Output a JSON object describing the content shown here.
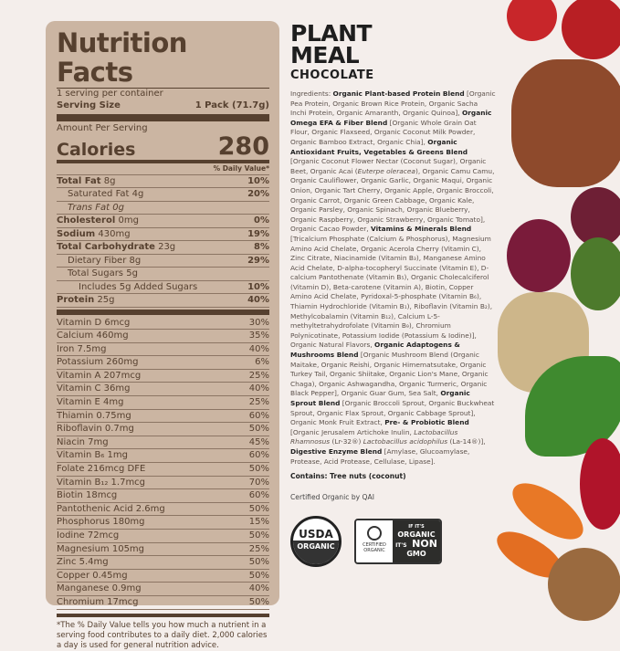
{
  "label": {
    "title": "Nutrition Facts",
    "servings": "1 serving per container",
    "serving_size_label": "Serving Size",
    "serving_size": "1 Pack  (71.7g)",
    "amount_per_serving": "Amount Per Serving",
    "calories_label": "Calories",
    "calories": "280",
    "dv_header": "% Daily Value*",
    "rows": [
      {
        "name": "Total Fat",
        "amt": "8g",
        "dv": "10%",
        "bold": true,
        "indent": 0
      },
      {
        "name": "Saturated Fat",
        "amt": "4g",
        "dv": "20%",
        "bold": false,
        "indent": 1
      },
      {
        "name": "Trans Fat",
        "amt": "0g",
        "dv": "",
        "bold": false,
        "indent": 1,
        "italic": true
      },
      {
        "name": "Cholesterol",
        "amt": "0mg",
        "dv": "0%",
        "bold": true,
        "indent": 0
      },
      {
        "name": "Sodium",
        "amt": "430mg",
        "dv": "19%",
        "bold": true,
        "indent": 0
      },
      {
        "name": "Total Carbohydrate",
        "amt": "23g",
        "dv": "8%",
        "bold": true,
        "indent": 0
      },
      {
        "name": "Dietary Fiber",
        "amt": "8g",
        "dv": "29%",
        "bold": false,
        "indent": 1
      },
      {
        "name": "Total Sugars",
        "amt": "5g",
        "dv": "",
        "bold": false,
        "indent": 1
      },
      {
        "name": "Includes 5g Added Sugars",
        "amt": "",
        "dv": "10%",
        "bold": false,
        "indent": 2
      },
      {
        "name": "Protein",
        "amt": "25g",
        "dv": "40%",
        "bold": true,
        "indent": 0
      }
    ],
    "vitamins": [
      [
        "Vitamin D 6mcg",
        "30%"
      ],
      [
        "Calcium 460mg",
        "35%"
      ],
      [
        "Iron 7.5mg",
        "40%"
      ],
      [
        "Potassium 260mg",
        "6%"
      ],
      [
        "Vitamin A 207mcg",
        "25%"
      ],
      [
        "Vitamin C 36mg",
        "40%"
      ],
      [
        "Vitamin E 4mg",
        "25%"
      ],
      [
        "Thiamin 0.75mg",
        "60%"
      ],
      [
        "Riboflavin 0.7mg",
        "50%"
      ],
      [
        "Niacin 7mg",
        "45%"
      ],
      [
        "Vitamin B₆ 1mg",
        "60%"
      ],
      [
        "Folate 216mcg DFE",
        "50%"
      ],
      [
        "Vitamin B₁₂ 1.7mcg",
        "70%"
      ],
      [
        "Biotin 18mcg",
        "60%"
      ],
      [
        "Pantothenic Acid 2.6mg",
        "50%"
      ],
      [
        "Phosphorus 180mg",
        "15%"
      ],
      [
        "Iodine 72mcg",
        "50%"
      ],
      [
        "Magnesium 105mg",
        "25%"
      ],
      [
        "Zinc 5.4mg",
        "50%"
      ],
      [
        "Copper 0.45mg",
        "50%"
      ],
      [
        "Manganese 0.9mg",
        "40%"
      ],
      [
        "Chromium 17mcg",
        "50%"
      ]
    ],
    "footnote": "*The % Daily Value tells you how much a nutrient in a serving food contributes to a daily diet. 2,000 calories a day is used for general nutrition advice."
  },
  "product": {
    "line1": "PLANT",
    "line2": "MEAL",
    "flavor": "CHOCOLATE"
  },
  "ingredients": [
    [
      "Ingredients: ",
      ""
    ],
    [
      "Organic Plant-based Protein Blend",
      "b"
    ],
    [
      " [Organic Pea Protein, Organic Brown Rice Protein, Organic Sacha Inchi Protein, Organic Amaranth, Organic Quinoa], ",
      ""
    ],
    [
      "Organic Omega EFA & Fiber Blend",
      "b"
    ],
    [
      " [Organic Whole Grain Oat Flour, Organic Flaxseed, Organic Coconut Milk Powder, Organic Bamboo Extract, Organic Chia], ",
      ""
    ],
    [
      "Organic Antioxidant Fruits, Vegetables & Greens Blend",
      "b"
    ],
    [
      " [Organic Coconut Flower Nectar (Coconut Sugar), Organic Beet, Organic Acai (",
      ""
    ],
    [
      "Euterpe oleracea",
      "i"
    ],
    [
      "), Organic Camu Camu, Organic Cauliflower, Organic Garlic, Organic Maqui, Organic Onion, Organic Tart Cherry, Organic Apple, Organic Broccoli, Organic Carrot, Organic Green Cabbage, Organic Kale, Organic Parsley, Organic Spinach, Organic Blueberry, Organic Raspberry, Organic Strawberry, Organic Tomato], Organic Cacao Powder, ",
      ""
    ],
    [
      "Vitamins & Minerals Blend",
      "b"
    ],
    [
      " [Tricalcium Phosphate (Calcium & Phosphorus), Magnesium Amino Acid Chelate, Organic Acerola Cherry (Vitamin C), Zinc Citrate, Niacinamide (Vitamin B₃), Manganese Amino Acid Chelate, D-alpha-tocopheryl Succinate (Vitamin E), D-calcium Pantothenate (Vitamin B₅), Organic Cholecalciferol (Vitamin D), Beta-carotene (Vitamin A), Biotin, Copper Amino Acid Chelate, Pyridoxal-5-phosphate (Vitamin B₆), Thiamin Hydrochloride (Vitamin B₁), Riboflavin (Vitamin B₂), Methylcobalamin (Vitamin B₁₂), Calcium L-5-methyltetrahydrofolate (Vitamin B₉), Chromium Polynicotinate, Potassium Iodide (Potassium & Iodine)], Organic Natural Flavors, ",
      ""
    ],
    [
      "Organic Adaptogens & Mushrooms Blend",
      "b"
    ],
    [
      " [Organic Mushroom Blend (Organic Maitake, Organic Reishi, Organic Himematsutake, Organic Turkey Tail, Organic Shiitake, Organic Lion's Mane, Organic Chaga), Organic Ashwagandha, Organic Turmeric, Organic Black Pepper], Organic Guar Gum, Sea Salt, ",
      ""
    ],
    [
      "Organic Sprout Blend",
      "b"
    ],
    [
      " [Organic Broccoli Sprout, Organic Buckwheat Sprout, Organic Flax Sprout, Organic Cabbage Sprout], Organic Monk Fruit Extract, ",
      ""
    ],
    [
      "Pre- & Probiotic Blend",
      "b"
    ],
    [
      " [Organic Jerusalem Artichoke Inulin, ",
      ""
    ],
    [
      "Lactobacillus Rhamnosus",
      "i"
    ],
    [
      " (Lr-32®) ",
      ""
    ],
    [
      "Lactobacillus acidophilus",
      "i"
    ],
    [
      " (La-14®)], ",
      ""
    ],
    [
      "Digestive Enzyme Blend",
      "b"
    ],
    [
      " [Amylase, Glucoamylase, Protease, Acid Protease, Cellulase, Lipase].",
      ""
    ]
  ],
  "contains": "Contains: Tree nuts (coconut)",
  "certified": "Certified Organic by QAI",
  "badges": {
    "usda_top": "USDA",
    "usda_bottom": "ORGANIC",
    "cert1": "CERTIFIED",
    "cert2": "ORGANIC",
    "gmo1": "IF IT'S",
    "gmo2": "ORGANIC",
    "gmo3": "IT'S",
    "gmo4": "NON",
    "gmo5": "GMO"
  },
  "colors": {
    "panel": "#cbb5a2",
    "label_text": "#56402f",
    "background": "#f4eeeb"
  }
}
